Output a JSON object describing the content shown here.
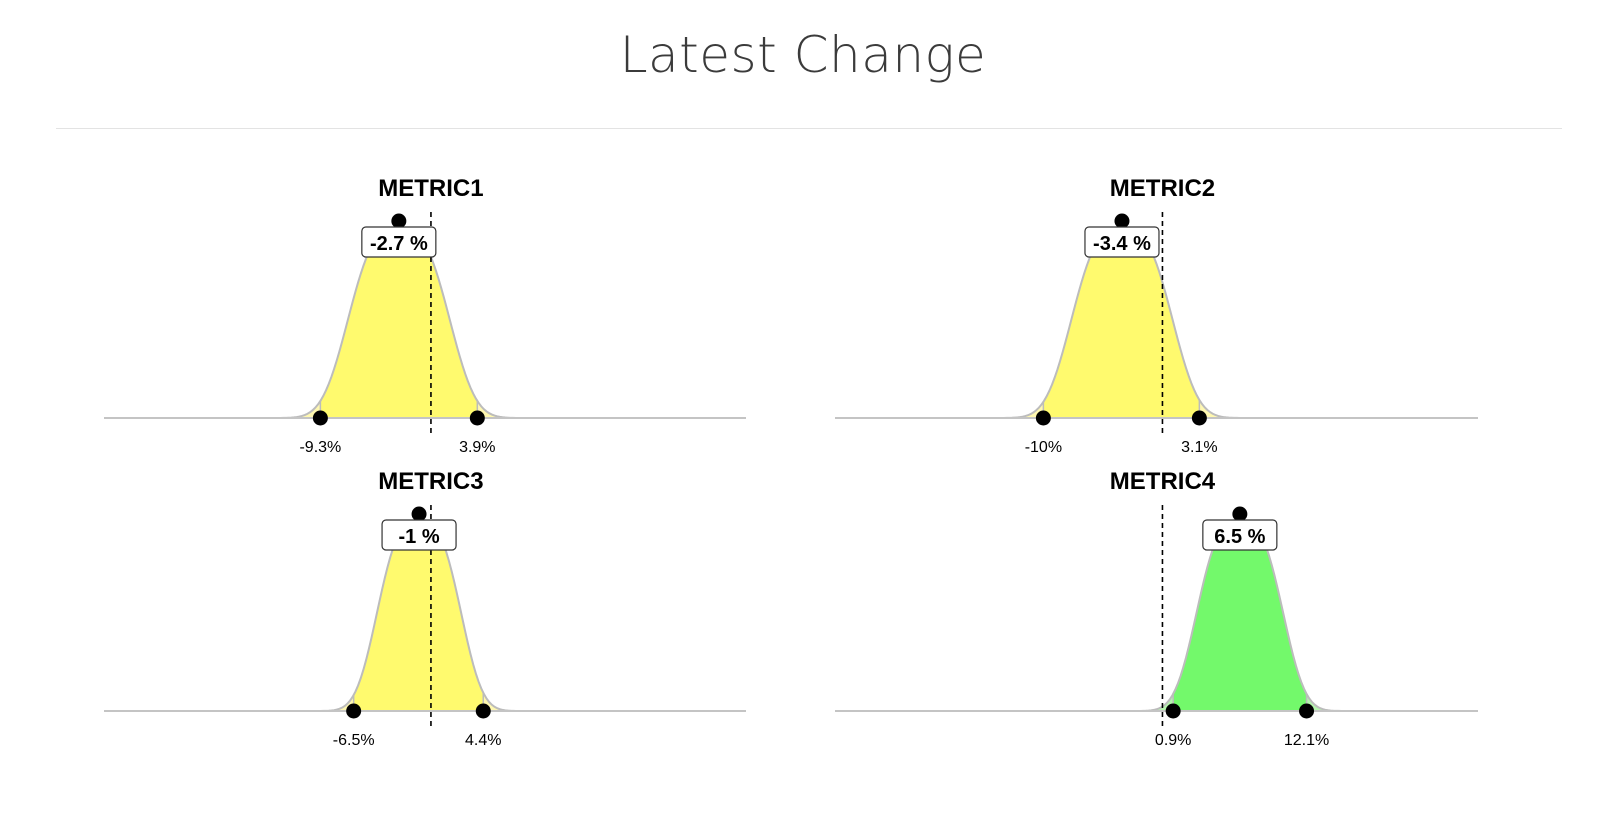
{
  "title": "Latest Change",
  "colors": {
    "neutral_fill": "#fffa6e",
    "neutral_tail": "#fff8b0",
    "positive_fill": "#73f96b",
    "positive_tail": "#b5f5ad",
    "curve": "#bcbcbc",
    "axis": "#c4c4c4",
    "reference_line": "#000000",
    "marker": "#000000"
  },
  "chart_data": [
    {
      "type": "area",
      "title": "METRIC1",
      "estimate": -2.7,
      "estimate_label": "-2.7 %",
      "lower": -9.3,
      "upper": 3.9,
      "lower_label": "-9.3%",
      "upper_label": "3.9%",
      "reference": 0,
      "fill": "neutral"
    },
    {
      "type": "area",
      "title": "METRIC2",
      "estimate": -3.4,
      "estimate_label": "-3.4 %",
      "lower": -10,
      "upper": 3.1,
      "lower_label": "-10%",
      "upper_label": "3.1%",
      "reference": 0,
      "fill": "neutral"
    },
    {
      "type": "area",
      "title": "METRIC3",
      "estimate": -1,
      "estimate_label": "-1 %",
      "lower": -6.5,
      "upper": 4.4,
      "lower_label": "-6.5%",
      "upper_label": "4.4%",
      "reference": 0,
      "fill": "neutral"
    },
    {
      "type": "area",
      "title": "METRIC4",
      "estimate": 6.5,
      "estimate_label": "6.5 %",
      "lower": 0.9,
      "upper": 12.1,
      "lower_label": "0.9%",
      "upper_label": "12.1%",
      "reference": 0,
      "fill": "positive"
    }
  ]
}
